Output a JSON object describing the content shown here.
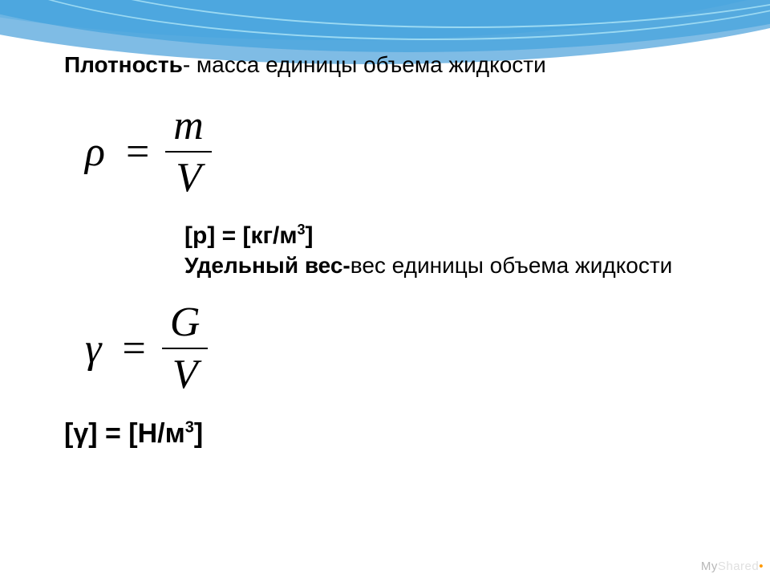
{
  "colors": {
    "background": "#ffffff",
    "text": "#000000",
    "wave_dark": "#2a8fd4",
    "wave_mid": "#52b4e8",
    "wave_light": "#b9e4f7",
    "wave_line": "#9bd9f2",
    "watermark_my": "#b8b8b8",
    "watermark_shared": "#e0e0e0",
    "watermark_dot": "#ff9a00"
  },
  "typography": {
    "body_font": "Arial",
    "formula_font": "Times New Roman",
    "title_size_pt": 21,
    "formula_size_pt": 39,
    "unit_size_pt": 22,
    "subdef_size_pt": 21,
    "unit2_size_pt": 25
  },
  "title": {
    "term": "Плотность",
    "dash": "- ",
    "definition": "масса единицы объема жидкости"
  },
  "density": {
    "symbol": "ρ",
    "eq": "=",
    "numerator": "m",
    "denominator": "V",
    "unit_open": "[р] = [кг/м",
    "unit_sup": "3",
    "unit_close": "]"
  },
  "specific_weight": {
    "term": "Удельный вес-",
    "definition": "вес единицы объема жидкости",
    "symbol": "γ",
    "eq": "=",
    "numerator": "G",
    "denominator": "V",
    "unit_open": "[γ] = [Н/м",
    "unit_sup": "3",
    "unit_close": "]"
  },
  "watermark": {
    "part1": "My",
    "part2": "Shared",
    "dot": "•"
  }
}
